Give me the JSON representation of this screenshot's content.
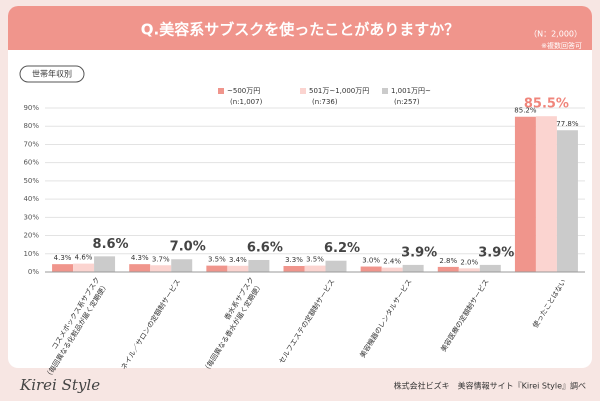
{
  "header": {
    "title": "Q.美容系サブスクを使ったことがありますか？",
    "sample": "（N：2,000）",
    "note": "※複数回答可"
  },
  "chart_data": {
    "type": "bar",
    "group_label": "世帯年収別",
    "categories": [
      [
        "コスメボックス系サブスク",
        "（毎回異なる化粧品が届く定期便）"
      ],
      [
        "ネイル／サロンの定額制サービス"
      ],
      [
        "香水系サブスク",
        "（毎回異なる香水が届く定期便）"
      ],
      [
        "セルフエステの定額制サービス"
      ],
      [
        "美容機器のレンタルサービス"
      ],
      [
        "美容医療の定額制サービス"
      ],
      [
        "使ったことはない"
      ]
    ],
    "series": [
      {
        "name": "~500万円",
        "n_label": "(n:1,007)",
        "color": "#f0958c",
        "values": [
          4.3,
          4.3,
          3.5,
          3.3,
          3.0,
          2.8,
          85.2
        ],
        "value_labels": [
          "4.3%",
          "4.3%",
          "3.5%",
          "3.3%",
          "3.0%",
          "2.8%",
          "85.2%"
        ]
      },
      {
        "name": "501万~1,000万円",
        "n_label": "(n:736)",
        "color": "#fbd4d0",
        "values": [
          4.6,
          3.7,
          3.4,
          3.5,
          2.4,
          2.0,
          85.5
        ],
        "value_labels": [
          "4.6%",
          "3.7%",
          "3.4%",
          "3.5%",
          "2.4%",
          "2.0%",
          "85.5%"
        ],
        "emphasis": [
          false,
          false,
          false,
          false,
          false,
          false,
          true
        ]
      },
      {
        "name": "1,001万円~",
        "n_label": "(n:257)",
        "color": "#cbcbcb",
        "values": [
          8.6,
          7.0,
          6.6,
          6.2,
          3.9,
          3.9,
          77.8
        ],
        "value_labels": [
          "8.6%",
          "7.0%",
          "6.6%",
          "6.2%",
          "3.9%",
          "3.9%",
          "77.8%"
        ],
        "emphasis": [
          true,
          true,
          true,
          true,
          true,
          true,
          false
        ]
      }
    ],
    "ylim": [
      0,
      90
    ],
    "yticks": [
      {
        "value": 0,
        "label": "0%"
      },
      {
        "value": 10,
        "label": "10%"
      },
      {
        "value": 20,
        "label": "20%"
      },
      {
        "value": 30,
        "label": "30%"
      },
      {
        "value": 40,
        "label": "40%"
      },
      {
        "value": 50,
        "label": "50%"
      },
      {
        "value": 60,
        "label": "60%"
      },
      {
        "value": 70,
        "label": "70%"
      },
      {
        "value": 80,
        "label": "80%"
      },
      {
        "value": 90,
        "label": "90%"
      }
    ],
    "grid": true
  },
  "footer": {
    "logo": "Kirei Style",
    "credit": "株式会社ビズキ　美容情報サイト『Kirei Style』調べ"
  }
}
